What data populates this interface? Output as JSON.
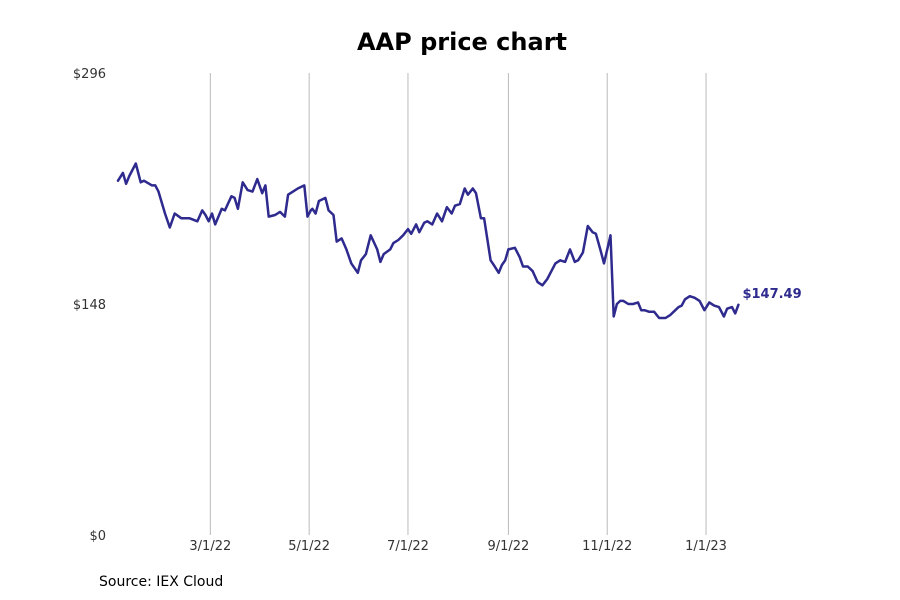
{
  "chart_data": {
    "type": "line",
    "title": "AAP price chart",
    "source": "Source: IEX Cloud",
    "xlabel": "",
    "ylabel": "",
    "ylim": [
      0,
      296
    ],
    "xlim": [
      "2022-01-03",
      "2023-02-28"
    ],
    "y_ticks": [
      {
        "value": 0,
        "label": "$0"
      },
      {
        "value": 148,
        "label": "$148"
      },
      {
        "value": 296,
        "label": "$296"
      }
    ],
    "x_ticks": [
      {
        "date": "2022-03-01",
        "label": "3/1/22"
      },
      {
        "date": "2022-05-01",
        "label": "5/1/22"
      },
      {
        "date": "2022-07-01",
        "label": "7/1/22"
      },
      {
        "date": "2022-09-01",
        "label": "9/1/22"
      },
      {
        "date": "2022-11-01",
        "label": "11/1/22"
      },
      {
        "date": "2023-01-01",
        "label": "1/1/23"
      }
    ],
    "grid": {
      "vertical": true,
      "horizontal": false
    },
    "line_color": "#2e2a8e",
    "grid_color": "#bbbbbb",
    "end_label": "$147.49",
    "series": [
      {
        "x": [
          "2022-01-03",
          "2022-01-06",
          "2022-01-08",
          "2022-01-10",
          "2022-01-14",
          "2022-01-17",
          "2022-01-19",
          "2022-01-24",
          "2022-01-26",
          "2022-01-28",
          "2022-02-01",
          "2022-02-04",
          "2022-02-07",
          "2022-02-11",
          "2022-02-16",
          "2022-02-21",
          "2022-02-24",
          "2022-02-26",
          "2022-02-28",
          "2022-03-02",
          "2022-03-04",
          "2022-03-08",
          "2022-03-10",
          "2022-03-14",
          "2022-03-16",
          "2022-03-18",
          "2022-03-21",
          "2022-03-24",
          "2022-03-27",
          "2022-03-30",
          "2022-04-02",
          "2022-04-04",
          "2022-04-06",
          "2022-04-10",
          "2022-04-13",
          "2022-04-16",
          "2022-04-18",
          "2022-04-21",
          "2022-04-24",
          "2022-04-28",
          "2022-04-30",
          "2022-05-02",
          "2022-05-03",
          "2022-05-05",
          "2022-05-07",
          "2022-05-11",
          "2022-05-13",
          "2022-05-16",
          "2022-05-18",
          "2022-05-21",
          "2022-05-24",
          "2022-05-27",
          "2022-05-31",
          "2022-06-02",
          "2022-06-05",
          "2022-06-08",
          "2022-06-12",
          "2022-06-14",
          "2022-06-16",
          "2022-06-20",
          "2022-06-22",
          "2022-06-25",
          "2022-06-28",
          "2022-07-01",
          "2022-07-03",
          "2022-07-06",
          "2022-07-08",
          "2022-07-11",
          "2022-07-13",
          "2022-07-16",
          "2022-07-19",
          "2022-07-22",
          "2022-07-25",
          "2022-07-28",
          "2022-07-30",
          "2022-08-02",
          "2022-08-05",
          "2022-08-07",
          "2022-08-10",
          "2022-08-12",
          "2022-08-15",
          "2022-08-17",
          "2022-08-21",
          "2022-08-23",
          "2022-08-26",
          "2022-08-28",
          "2022-08-30",
          "2022-09-01",
          "2022-09-05",
          "2022-09-08",
          "2022-09-10",
          "2022-09-13",
          "2022-09-16",
          "2022-09-19",
          "2022-09-22",
          "2022-09-25",
          "2022-09-27",
          "2022-09-30",
          "2022-10-03",
          "2022-10-06",
          "2022-10-09",
          "2022-10-12",
          "2022-10-14",
          "2022-10-17",
          "2022-10-20",
          "2022-10-23",
          "2022-10-25",
          "2022-10-28",
          "2022-10-30",
          "2022-11-03",
          "2022-11-05",
          "2022-11-07",
          "2022-11-09",
          "2022-11-11",
          "2022-11-14",
          "2022-11-15",
          "2022-11-17",
          "2022-11-20",
          "2022-11-22",
          "2022-11-24",
          "2022-11-27",
          "2022-11-30",
          "2022-12-03",
          "2022-12-07",
          "2022-12-10",
          "2022-12-12",
          "2022-12-15",
          "2022-12-17",
          "2022-12-19",
          "2022-12-22",
          "2022-12-25",
          "2022-12-28",
          "2022-12-31",
          "2023-01-03",
          "2023-01-06",
          "2023-01-09",
          "2023-01-12",
          "2023-01-14",
          "2023-01-17",
          "2023-01-19",
          "2023-01-21"
        ],
        "values": [
          227,
          232,
          225,
          230,
          238,
          226,
          227,
          224,
          224,
          220,
          206,
          197,
          206,
          203,
          203,
          201,
          208,
          205,
          201,
          206,
          199,
          209,
          208,
          217,
          216,
          209,
          226,
          221,
          220,
          228,
          219,
          224,
          204,
          205,
          207,
          204,
          218,
          220,
          222,
          224,
          204,
          208,
          209,
          206,
          214,
          216,
          208,
          205,
          188,
          190,
          183,
          174,
          168,
          176,
          180,
          192,
          183,
          175,
          180,
          183,
          187,
          189,
          192,
          196,
          193,
          199,
          194,
          200,
          201,
          199,
          206,
          201,
          210,
          206,
          211,
          212,
          222,
          218,
          222,
          219,
          203,
          203,
          176,
          173,
          168,
          173,
          176,
          183,
          184,
          178,
          172,
          172,
          169,
          162,
          160,
          164,
          168,
          174,
          176,
          175,
          183,
          175,
          176,
          181,
          198,
          194,
          193,
          182,
          174,
          192,
          140,
          148,
          150,
          150,
          148,
          148,
          148,
          149,
          144,
          144,
          143,
          143,
          139,
          139,
          141,
          143,
          146,
          147,
          151,
          153,
          152,
          150,
          144,
          149,
          147,
          146,
          140,
          145,
          146,
          142,
          147.49
        ]
      }
    ]
  }
}
